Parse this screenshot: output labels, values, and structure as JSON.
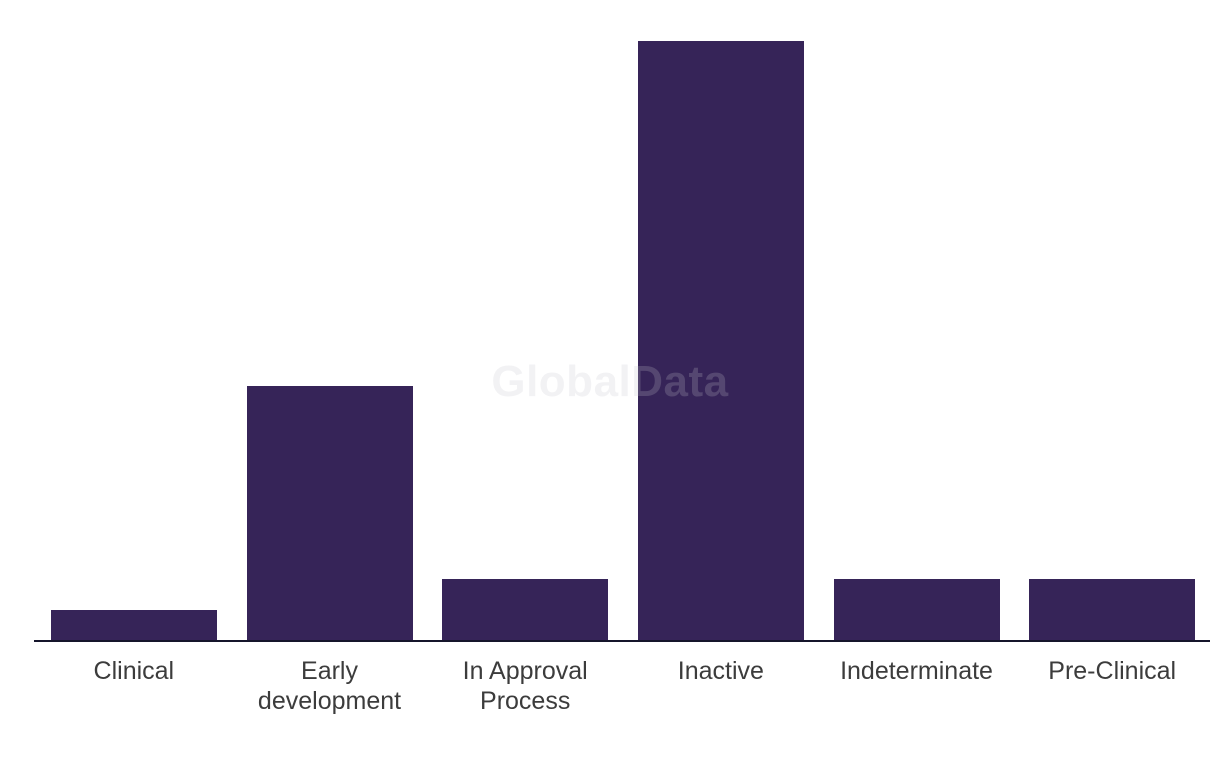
{
  "watermark": {
    "text": "GlobalData"
  },
  "colors": {
    "background": "#ffffff",
    "bar": "#362458",
    "axis": "#15152b",
    "label": "#3c3c3c",
    "watermark": "rgba(195,195,205,0.22)"
  },
  "chart_data": {
    "type": "bar",
    "title": "",
    "xlabel": "",
    "ylabel": "",
    "categories": [
      "Clinical",
      "Early development",
      "In Approval Process",
      "Inactive",
      "Indeterminate",
      "Pre-Clinical"
    ],
    "category_label_lines": [
      "Clinical",
      "Early\ndevelopment",
      "In Approval\nProcess",
      "Inactive",
      "Indeterminate",
      "Pre-Clinical"
    ],
    "values": [
      3,
      25,
      6,
      59,
      6,
      6
    ],
    "values_note": "relative values estimated from bar pixel heights; no numeric axis shown",
    "ylim": [
      0,
      63
    ],
    "grid": false,
    "legend": false,
    "bar_color": "#362458",
    "watermark_text": "GlobalData"
  }
}
